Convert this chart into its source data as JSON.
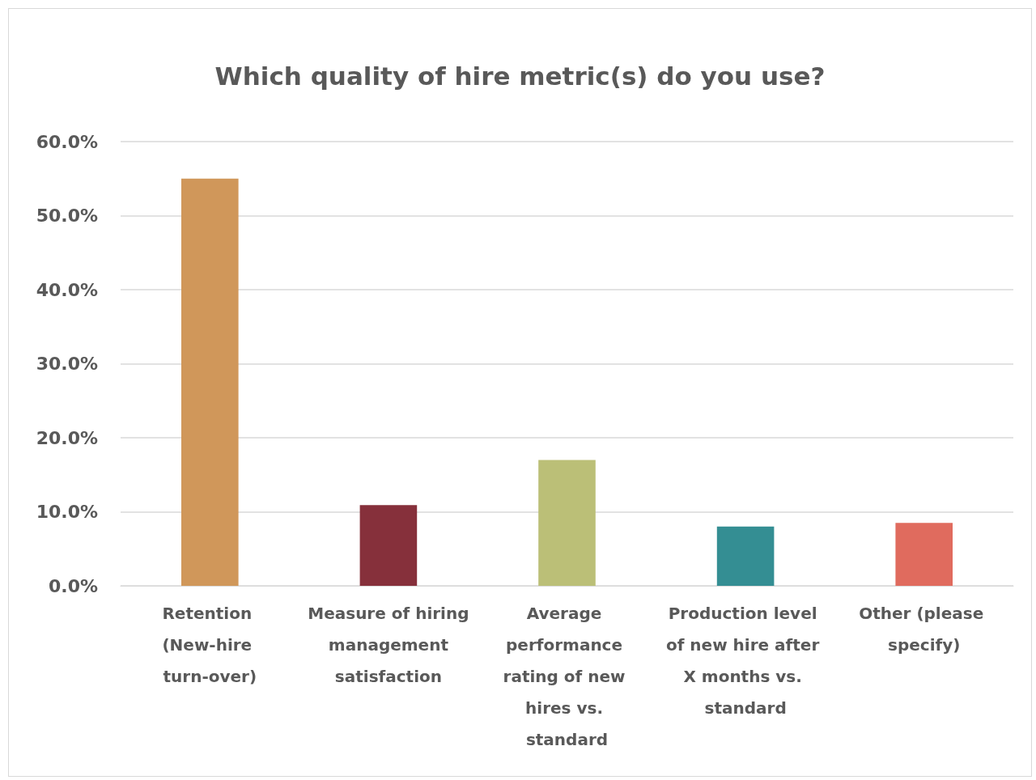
{
  "chart_data": {
    "type": "bar",
    "title": "Which quality of hire metric(s) do you use?",
    "categories": [
      "Retention (New-hire turn-over)",
      "Measure of hiring management satisfaction",
      "Average performance rating of new hires vs. standard",
      "Production level of new hire after X months vs. standard",
      "Other (please specify)"
    ],
    "values": [
      55.0,
      10.9,
      17.0,
      8.0,
      8.5
    ],
    "colors": [
      "#d0975a",
      "#86303b",
      "#bbbf77",
      "#348e93",
      "#e06b5e"
    ],
    "ylim": [
      0,
      60
    ],
    "yticks": [
      {
        "value": 0,
        "label": "0.0%"
      },
      {
        "value": 10,
        "label": "10.0%"
      },
      {
        "value": 20,
        "label": "20.0%"
      },
      {
        "value": 30,
        "label": "30.0%"
      },
      {
        "value": 40,
        "label": "40.0%"
      },
      {
        "value": 50,
        "label": "50.0%"
      },
      {
        "value": 60,
        "label": "60.0%"
      }
    ],
    "grid": "y"
  }
}
